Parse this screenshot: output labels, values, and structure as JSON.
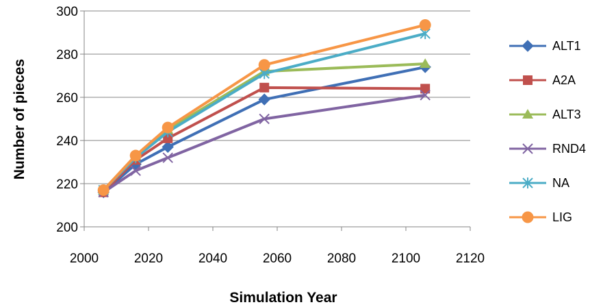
{
  "chart_data": {
    "type": "line",
    "title": "",
    "xlabel": "Simulation Year",
    "ylabel": "Number of pieces",
    "xlim": [
      2000,
      2120
    ],
    "ylim": [
      200,
      300
    ],
    "xticks": [
      2000,
      2020,
      2040,
      2060,
      2080,
      2100,
      2120
    ],
    "yticks": [
      200,
      220,
      240,
      260,
      280,
      300
    ],
    "grid": "horizontal",
    "legend_position": "right",
    "series": [
      {
        "name": "ALT1",
        "color": "#3f6fb5",
        "marker": "diamond",
        "x": [
          2006,
          2016,
          2026,
          2056,
          2106
        ],
        "y": [
          216,
          229,
          237,
          259,
          274
        ]
      },
      {
        "name": "A2A",
        "color": "#c0504d",
        "marker": "square",
        "x": [
          2006,
          2016,
          2026,
          2056,
          2106
        ],
        "y": [
          216,
          231,
          241,
          264.5,
          264
        ]
      },
      {
        "name": "ALT3",
        "color": "#9bbb59",
        "marker": "triangle",
        "x": [
          2006,
          2016,
          2026,
          2056,
          2106
        ],
        "y": [
          217,
          233,
          245,
          272,
          275.5
        ]
      },
      {
        "name": "RND4",
        "color": "#8064a2",
        "marker": "x",
        "x": [
          2006,
          2016,
          2026,
          2056,
          2106
        ],
        "y": [
          216,
          226,
          232,
          250,
          261
        ]
      },
      {
        "name": "NA",
        "color": "#4bacc6",
        "marker": "star",
        "x": [
          2006,
          2016,
          2026,
          2056,
          2106
        ],
        "y": [
          217,
          232,
          244,
          271,
          289.5
        ]
      },
      {
        "name": "LIG",
        "color": "#f79646",
        "marker": "circle",
        "x": [
          2006,
          2016,
          2026,
          2056,
          2106
        ],
        "y": [
          217,
          233,
          246,
          275,
          293.5
        ]
      }
    ]
  }
}
